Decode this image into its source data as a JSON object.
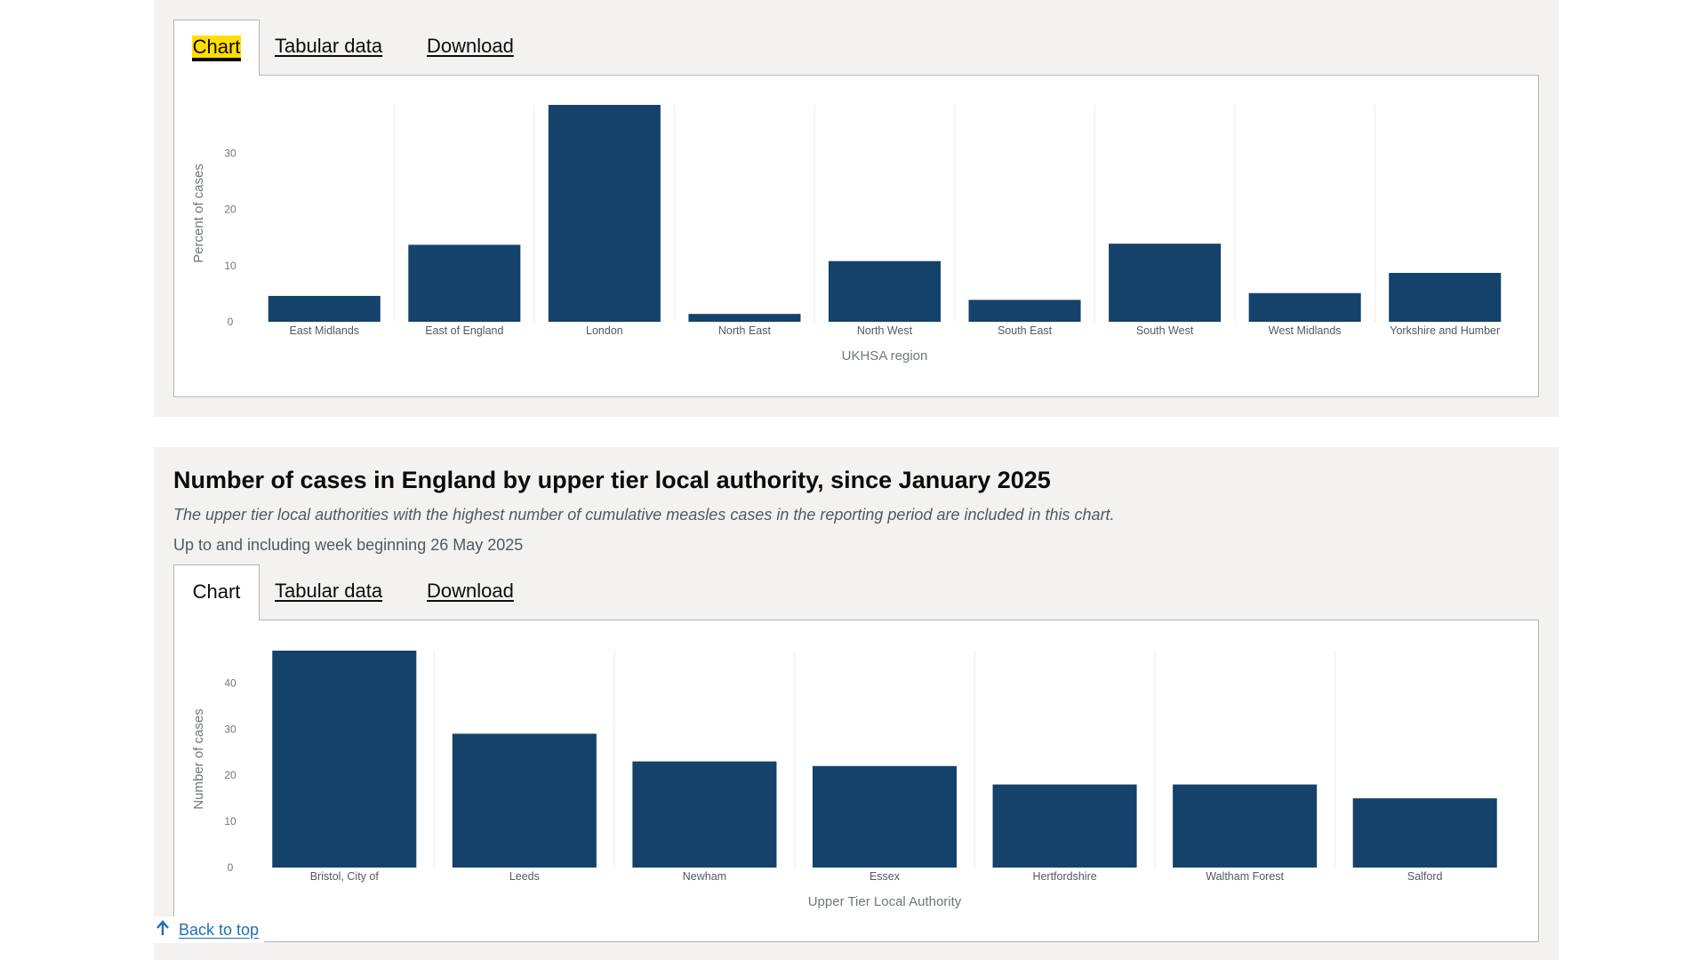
{
  "chart1": {
    "tabs": {
      "chart": "Chart",
      "tabular": "Tabular data",
      "download": "Download"
    },
    "chart_data": {
      "type": "bar",
      "categories": [
        "East Midlands",
        "East of England",
        "London",
        "North East",
        "North West",
        "South East",
        "South West",
        "West Midlands",
        "Yorkshire and Humber"
      ],
      "values": [
        4.6,
        13.7,
        38.6,
        1.4,
        10.8,
        3.9,
        13.9,
        5.1,
        8.7
      ],
      "xlabel": "UKHSA region",
      "ylabel": "Percent of cases",
      "yticks": [
        0,
        10,
        20,
        30
      ],
      "ylim": [
        0,
        38.6
      ],
      "grid": "vertical",
      "color": "#14426b"
    }
  },
  "chart2": {
    "heading": "Number of cases in England by upper tier local authority, since January 2025",
    "subtitle": "The upper tier local authorities with the highest number of cumulative measles cases in the reporting period are included in this chart.",
    "date_note": "Up to and including week beginning 26 May 2025",
    "tabs": {
      "chart": "Chart",
      "tabular": "Tabular data",
      "download": "Download"
    },
    "chart_data": {
      "type": "bar",
      "categories": [
        "Bristol, City of",
        "Leeds",
        "Newham",
        "Essex",
        "Hertfordshire",
        "Waltham Forest",
        "Salford"
      ],
      "values": [
        47,
        29,
        23,
        22,
        18,
        18,
        15
      ],
      "xlabel": "Upper Tier Local Authority",
      "ylabel": "Number of cases",
      "yticks": [
        0,
        10,
        20,
        30,
        40
      ],
      "ylim": [
        0,
        47
      ],
      "grid": "vertical",
      "color": "#14426b"
    }
  },
  "back_to_top": {
    "label": "Back to top",
    "icon": "arrow-up-icon"
  }
}
